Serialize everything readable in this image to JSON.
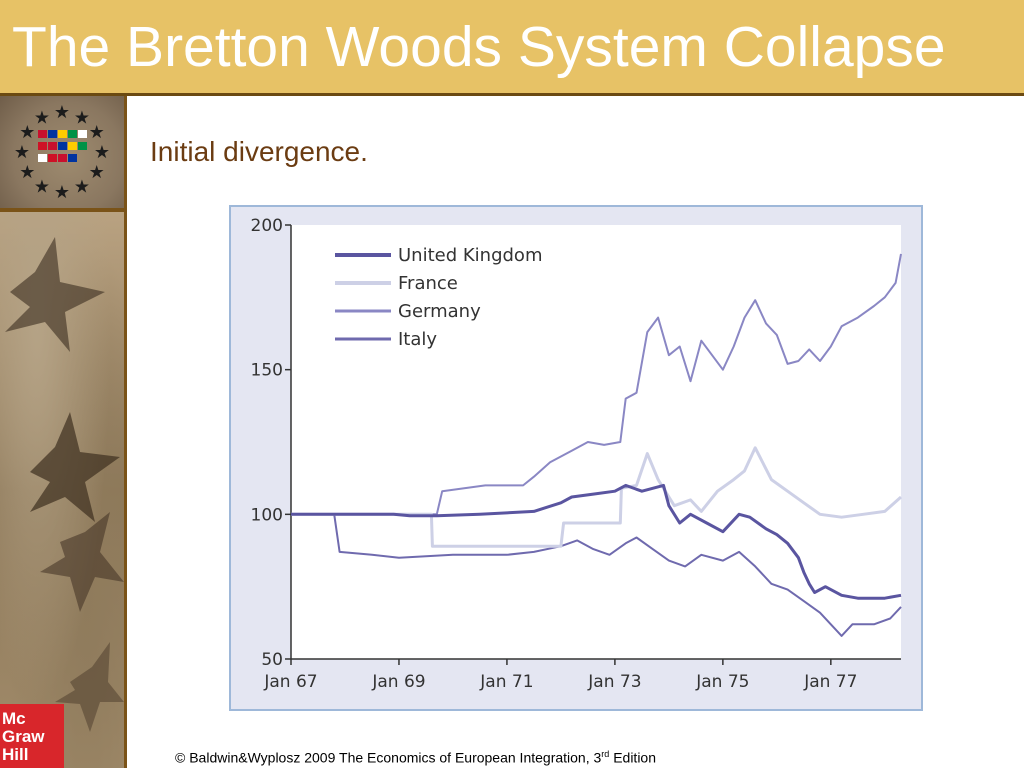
{
  "slide": {
    "title": "The Bretton Woods System Collapse",
    "subtitle": "Initial divergence.",
    "footer_main": "© Baldwin&Wyplosz 2009 The Economics of European Integration, 3",
    "footer_sup": "rd",
    "footer_end": " Edition",
    "logo_lines": [
      "Mc",
      "Graw",
      "Hill"
    ]
  },
  "colors": {
    "title_bar": "#e7c266",
    "united_kingdom": "#5a55a0",
    "france": "#cdd0e6",
    "germany": "#8a87c4",
    "italy": "#6f6aae"
  },
  "chart_data": {
    "type": "line",
    "ylim": [
      50,
      200
    ],
    "yticks": [
      50,
      100,
      150,
      200
    ],
    "xlim": [
      1967,
      1978.3
    ],
    "xticks": [
      1967,
      1969,
      1971,
      1973,
      1975,
      1977
    ],
    "xtick_labels": [
      "Jan 67",
      "Jan 69",
      "Jan 71",
      "Jan 73",
      "Jan 75",
      "Jan 77"
    ],
    "grid": false,
    "legend_position": "top-left",
    "series": [
      {
        "name": "United Kingdom",
        "color": "#5a55a0",
        "width": 3,
        "points": [
          [
            1967,
            100
          ],
          [
            1968.9,
            100
          ],
          [
            1969.2,
            99.5
          ],
          [
            1969.7,
            99.5
          ],
          [
            1970.5,
            100
          ],
          [
            1971.5,
            101
          ],
          [
            1972,
            104
          ],
          [
            1972.2,
            106
          ],
          [
            1972.6,
            107
          ],
          [
            1973,
            108
          ],
          [
            1973.2,
            110
          ],
          [
            1973.5,
            108
          ],
          [
            1973.9,
            110
          ],
          [
            1974,
            103
          ],
          [
            1974.2,
            97
          ],
          [
            1974.4,
            100
          ],
          [
            1974.7,
            97
          ],
          [
            1975,
            94
          ],
          [
            1975.3,
            100
          ],
          [
            1975.5,
            99
          ],
          [
            1975.8,
            95
          ],
          [
            1976,
            93
          ],
          [
            1976.2,
            90
          ],
          [
            1976.4,
            85
          ],
          [
            1976.5,
            80
          ],
          [
            1976.6,
            76
          ],
          [
            1976.7,
            73
          ],
          [
            1976.9,
            75
          ],
          [
            1977.2,
            72
          ],
          [
            1977.5,
            71
          ],
          [
            1978,
            71
          ],
          [
            1978.3,
            72
          ]
        ]
      },
      {
        "name": "France",
        "color": "#cdd0e6",
        "width": 3,
        "points": [
          [
            1967,
            100
          ],
          [
            1969.6,
            100
          ],
          [
            1969.62,
            89
          ],
          [
            1972,
            89
          ],
          [
            1972.05,
            97
          ],
          [
            1973.1,
            97
          ],
          [
            1973.12,
            109
          ],
          [
            1973.4,
            110
          ],
          [
            1973.6,
            121
          ],
          [
            1973.8,
            112
          ],
          [
            1974.1,
            103
          ],
          [
            1974.4,
            105
          ],
          [
            1974.6,
            101
          ],
          [
            1974.9,
            108
          ],
          [
            1975.2,
            112
          ],
          [
            1975.4,
            115
          ],
          [
            1975.6,
            123
          ],
          [
            1975.9,
            112
          ],
          [
            1976.2,
            108
          ],
          [
            1976.5,
            104
          ],
          [
            1976.8,
            100
          ],
          [
            1977.2,
            99
          ],
          [
            1977.6,
            100
          ],
          [
            1978,
            101
          ],
          [
            1978.3,
            106
          ]
        ]
      },
      {
        "name": "Germany",
        "color": "#8a87c4",
        "width": 2,
        "points": [
          [
            1967,
            100
          ],
          [
            1969.7,
            100
          ],
          [
            1969.8,
            108
          ],
          [
            1970.6,
            110
          ],
          [
            1971.3,
            110
          ],
          [
            1971.5,
            113
          ],
          [
            1971.8,
            118
          ],
          [
            1972.2,
            122
          ],
          [
            1972.5,
            125
          ],
          [
            1972.8,
            124
          ],
          [
            1973.1,
            125
          ],
          [
            1973.2,
            140
          ],
          [
            1973.4,
            142
          ],
          [
            1973.6,
            163
          ],
          [
            1973.8,
            168
          ],
          [
            1974,
            155
          ],
          [
            1974.2,
            158
          ],
          [
            1974.4,
            146
          ],
          [
            1974.6,
            160
          ],
          [
            1974.8,
            155
          ],
          [
            1975,
            150
          ],
          [
            1975.2,
            158
          ],
          [
            1975.4,
            168
          ],
          [
            1975.6,
            174
          ],
          [
            1975.8,
            166
          ],
          [
            1976,
            162
          ],
          [
            1976.2,
            152
          ],
          [
            1976.4,
            153
          ],
          [
            1976.6,
            157
          ],
          [
            1976.8,
            153
          ],
          [
            1977,
            158
          ],
          [
            1977.2,
            165
          ],
          [
            1977.5,
            168
          ],
          [
            1977.8,
            172
          ],
          [
            1978,
            175
          ],
          [
            1978.2,
            180
          ],
          [
            1978.3,
            190
          ]
        ]
      },
      {
        "name": "Italy",
        "color": "#6f6aae",
        "width": 2,
        "points": [
          [
            1967,
            100
          ],
          [
            1967.8,
            100
          ],
          [
            1967.9,
            87
          ],
          [
            1968.5,
            86
          ],
          [
            1969,
            85
          ],
          [
            1970,
            86
          ],
          [
            1971,
            86
          ],
          [
            1971.5,
            87
          ],
          [
            1972,
            89
          ],
          [
            1972.3,
            91
          ],
          [
            1972.6,
            88
          ],
          [
            1972.9,
            86
          ],
          [
            1973.2,
            90
          ],
          [
            1973.4,
            92
          ],
          [
            1973.7,
            88
          ],
          [
            1974,
            84
          ],
          [
            1974.3,
            82
          ],
          [
            1974.6,
            86
          ],
          [
            1975,
            84
          ],
          [
            1975.3,
            87
          ],
          [
            1975.6,
            82
          ],
          [
            1975.9,
            76
          ],
          [
            1976.2,
            74
          ],
          [
            1976.5,
            70
          ],
          [
            1976.8,
            66
          ],
          [
            1977,
            62
          ],
          [
            1977.2,
            58
          ],
          [
            1977.4,
            62
          ],
          [
            1977.8,
            62
          ],
          [
            1978.1,
            64
          ],
          [
            1978.3,
            68
          ]
        ]
      }
    ]
  }
}
